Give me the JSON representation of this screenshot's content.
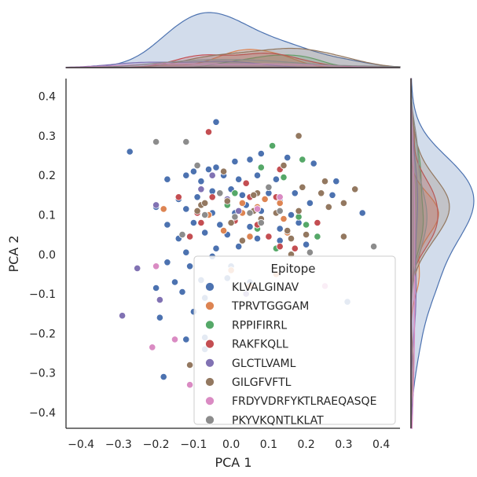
{
  "chart_data": {
    "type": "scatter",
    "style": "jointplot with marginal KDE",
    "xlabel": "PCA 1",
    "ylabel": "PCA 2",
    "xlim": [
      -0.44,
      0.45
    ],
    "ylim": [
      -0.44,
      0.445
    ],
    "xticks": [
      "−0.4",
      "−0.3",
      "−0.2",
      "−0.1",
      "0.0",
      "0.1",
      "0.2",
      "0.3",
      "0.4"
    ],
    "yticks": [
      "−0.4",
      "−0.3",
      "−0.2",
      "−0.1",
      "0.0",
      "0.1",
      "0.2",
      "0.3",
      "0.4"
    ],
    "grid": false,
    "legend": {
      "title": "Epitope",
      "placement": "lower-right"
    },
    "series": [
      {
        "name": "KLVALGINAV",
        "color": "#4c72b0",
        "points": [
          [
            -0.04,
            0.335
          ],
          [
            -0.27,
            0.26
          ],
          [
            -0.1,
            0.21
          ],
          [
            -0.06,
            0.215
          ],
          [
            -0.04,
            0.22
          ],
          [
            0.01,
            0.235
          ],
          [
            0.05,
            0.24
          ],
          [
            0.08,
            0.255
          ],
          [
            0.15,
            0.245
          ],
          [
            -0.17,
            0.19
          ],
          [
            -0.12,
            0.2
          ],
          [
            -0.08,
            0.185
          ],
          [
            -0.02,
            0.2
          ],
          [
            0.02,
            0.19
          ],
          [
            0.07,
            0.2
          ],
          [
            0.12,
            0.19
          ],
          [
            0.22,
            0.23
          ],
          [
            0.28,
            0.185
          ],
          [
            -0.05,
            0.16
          ],
          [
            0.0,
            0.165
          ],
          [
            0.03,
            0.15
          ],
          [
            0.1,
            0.155
          ],
          [
            0.17,
            0.155
          ],
          [
            0.27,
            0.15
          ],
          [
            -0.14,
            0.14
          ],
          [
            -0.09,
            0.145
          ],
          [
            -0.01,
            0.13
          ],
          [
            0.04,
            0.125
          ],
          [
            0.13,
            0.135
          ],
          [
            0.21,
            0.13
          ],
          [
            0.35,
            0.105
          ],
          [
            -0.2,
            0.12
          ],
          [
            -0.12,
            0.115
          ],
          [
            -0.05,
            0.105
          ],
          [
            0.01,
            0.105
          ],
          [
            0.08,
            0.11
          ],
          [
            0.16,
            0.1
          ],
          [
            -0.17,
            0.075
          ],
          [
            -0.1,
            0.08
          ],
          [
            -0.03,
            0.075
          ],
          [
            0.05,
            0.07
          ],
          [
            0.13,
            0.065
          ],
          [
            0.18,
            0.08
          ],
          [
            -0.14,
            0.04
          ],
          [
            -0.07,
            0.055
          ],
          [
            -0.01,
            0.05
          ],
          [
            0.07,
            0.04
          ],
          [
            0.13,
            0.035
          ],
          [
            0.2,
            0.025
          ],
          [
            -0.12,
            0.005
          ],
          [
            -0.04,
            0.015
          ],
          [
            0.02,
            0.02
          ],
          [
            -0.17,
            -0.02
          ],
          [
            -0.11,
            -0.03
          ],
          [
            -0.05,
            -0.005
          ],
          [
            0.0,
            -0.03
          ],
          [
            -0.15,
            -0.07
          ],
          [
            -0.08,
            -0.065
          ],
          [
            -0.01,
            -0.06
          ],
          [
            0.05,
            -0.07
          ],
          [
            -0.2,
            -0.085
          ],
          [
            -0.13,
            -0.095
          ],
          [
            -0.07,
            -0.11
          ],
          [
            -0.19,
            -0.16
          ],
          [
            -0.1,
            -0.145
          ],
          [
            0.31,
            -0.12
          ],
          [
            -0.12,
            -0.215
          ],
          [
            -0.07,
            -0.21
          ],
          [
            -0.18,
            -0.31
          ],
          [
            -0.07,
            -0.24
          ]
        ]
      },
      {
        "name": "TPRVTGGGAM",
        "color": "#dd8452",
        "points": [
          [
            -0.18,
            0.115
          ],
          [
            0.03,
            0.13
          ],
          [
            0.09,
            0.14
          ],
          [
            0.01,
            0.09
          ],
          [
            0.07,
            0.12
          ],
          [
            0.03,
            0.105
          ],
          [
            -0.06,
            0.1
          ],
          [
            0.14,
            0.09
          ],
          [
            0.13,
            0.13
          ],
          [
            0.05,
            0.045
          ],
          [
            -0.02,
            0.06
          ],
          [
            0.15,
            0.055
          ],
          [
            0.0,
            -0.04
          ],
          [
            0.05,
            -0.08
          ],
          [
            0.12,
            -0.05
          ]
        ]
      },
      {
        "name": "RPPIFIRRL",
        "color": "#55a868",
        "points": [
          [
            0.11,
            0.275
          ],
          [
            0.19,
            0.24
          ],
          [
            0.08,
            0.22
          ],
          [
            0.01,
            0.155
          ],
          [
            0.14,
            0.195
          ],
          [
            0.18,
            0.095
          ],
          [
            0.2,
            0.075
          ],
          [
            0.07,
            0.065
          ],
          [
            0.23,
            0.045
          ],
          [
            0.12,
            0.015
          ],
          [
            -0.01,
            0.125
          ]
        ]
      },
      {
        "name": "RAKFKQLL",
        "color": "#c44e52",
        "points": [
          [
            -0.06,
            0.31
          ],
          [
            0.13,
            0.215
          ],
          [
            0.04,
            0.18
          ],
          [
            0.1,
            0.17
          ],
          [
            -0.05,
            0.145
          ],
          [
            -0.07,
            0.1
          ],
          [
            0.01,
            0.085
          ],
          [
            -0.14,
            0.145
          ],
          [
            0.05,
            0.145
          ],
          [
            0.12,
            0.145
          ],
          [
            -0.09,
            0.105
          ],
          [
            0.07,
            0.075
          ],
          [
            0.1,
            0.045
          ],
          [
            0.13,
            0.02
          ],
          [
            0.23,
            0.08
          ],
          [
            -0.11,
            0.045
          ],
          [
            0.17,
            0.015
          ],
          [
            -0.08,
            0.08
          ]
        ]
      },
      {
        "name": "GLCTLVAML",
        "color": "#8172b3",
        "points": [
          [
            -0.2,
            0.125
          ],
          [
            -0.08,
            0.165
          ],
          [
            -0.01,
            0.14
          ],
          [
            -0.05,
            0.2
          ],
          [
            0.02,
            0.11
          ],
          [
            -0.25,
            -0.035
          ],
          [
            -0.19,
            -0.115
          ],
          [
            -0.29,
            -0.155
          ],
          [
            0.04,
            -0.1
          ]
        ]
      },
      {
        "name": "GILGFVFTL",
        "color": "#937860",
        "points": [
          [
            0.18,
            0.3
          ],
          [
            0.14,
            0.225
          ],
          [
            0.25,
            0.185
          ],
          [
            0.33,
            0.165
          ],
          [
            -0.02,
            0.21
          ],
          [
            0.07,
            0.155
          ],
          [
            0.19,
            0.17
          ],
          [
            0.24,
            0.155
          ],
          [
            0.3,
            0.13
          ],
          [
            -0.08,
            0.125
          ],
          [
            -0.01,
            0.135
          ],
          [
            0.06,
            0.11
          ],
          [
            0.08,
            0.09
          ],
          [
            0.12,
            0.105
          ],
          [
            0.18,
            0.11
          ],
          [
            0.26,
            0.12
          ],
          [
            -0.09,
            0.11
          ],
          [
            0.15,
            0.06
          ],
          [
            0.2,
            0.05
          ],
          [
            0.3,
            0.045
          ],
          [
            0.03,
            0.035
          ],
          [
            0.16,
            0.0
          ],
          [
            0.0,
            0.08
          ],
          [
            -0.07,
            0.13
          ],
          [
            0.06,
            0.15
          ],
          [
            0.16,
            0.04
          ],
          [
            -0.11,
            -0.28
          ]
        ]
      },
      {
        "name": "FRDYVDRFYKTLRAEQASQE",
        "color": "#da8bc3",
        "points": [
          [
            0.1,
            0.17
          ],
          [
            0.13,
            0.145
          ],
          [
            0.07,
            0.115
          ],
          [
            -0.2,
            -0.03
          ],
          [
            -0.15,
            -0.215
          ],
          [
            -0.21,
            -0.235
          ],
          [
            -0.11,
            -0.33
          ],
          [
            0.25,
            -0.08
          ]
        ]
      },
      {
        "name": "PKYVKQNTLKLAT",
        "color": "#8c8c8c",
        "points": [
          [
            -0.2,
            0.285
          ],
          [
            -0.12,
            0.285
          ],
          [
            -0.09,
            0.225
          ],
          [
            -0.03,
            0.155
          ],
          [
            0.1,
            0.17
          ],
          [
            -0.07,
            0.1
          ],
          [
            0.01,
            0.095
          ],
          [
            0.05,
            0.105
          ],
          [
            0.13,
            0.11
          ],
          [
            -0.13,
            0.05
          ],
          [
            0.08,
            0.08
          ],
          [
            0.38,
            0.02
          ],
          [
            0.21,
            0.005
          ]
        ]
      }
    ]
  }
}
